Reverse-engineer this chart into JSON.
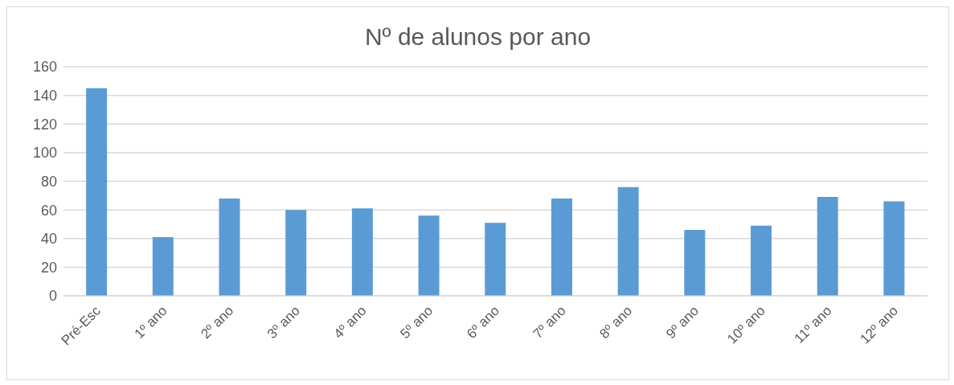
{
  "chart_data": {
    "type": "bar",
    "title": "Nº de alunos por ano",
    "categories": [
      "Pré-Esc",
      "1º ano",
      "2º ano",
      "3º ano",
      "4º ano",
      "5º ano",
      "6º ano",
      "7º ano",
      "8º ano",
      "9º ano",
      "10º ano",
      "11º ano",
      "12º ano"
    ],
    "values": [
      145,
      41,
      68,
      60,
      61,
      56,
      51,
      68,
      76,
      46,
      49,
      69,
      66
    ],
    "color": "#5b9bd5",
    "ylim": [
      0,
      160
    ],
    "yticks": [
      0,
      20,
      40,
      60,
      80,
      100,
      120,
      140,
      160
    ],
    "grid": "y"
  }
}
